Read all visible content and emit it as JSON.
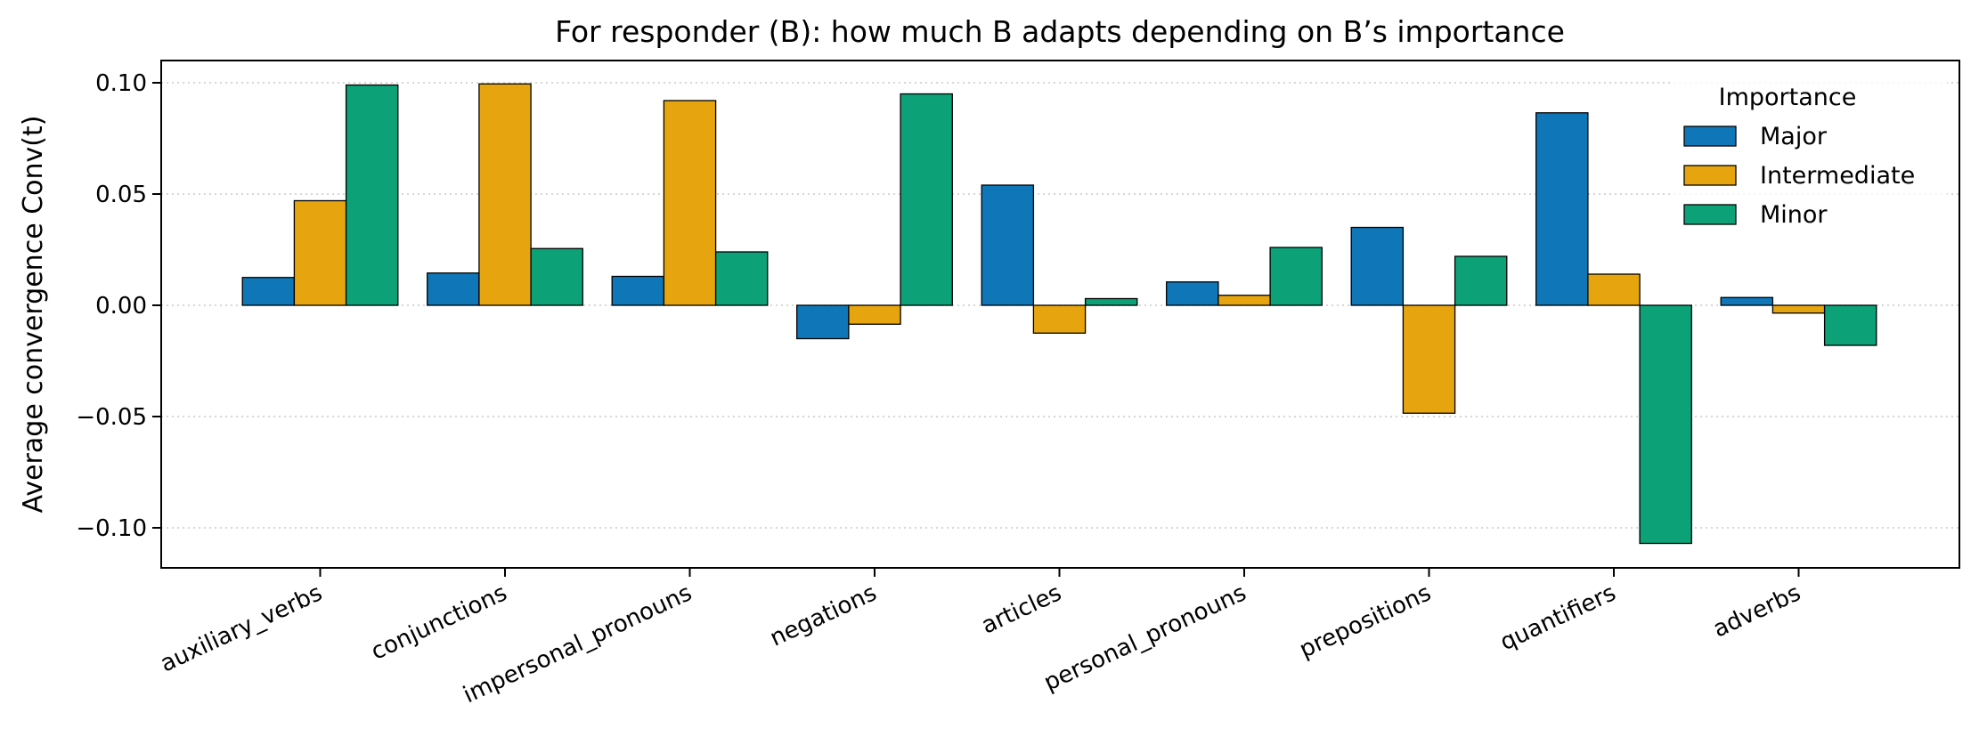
{
  "chart_data": {
    "type": "bar",
    "title": "For responder (B): how much B adapts depending on B’s importance",
    "xlabel": "",
    "ylabel": "Average convergence  Conv(t)",
    "ylim": [
      -0.118,
      0.11
    ],
    "yticks": [
      0.1,
      0.05,
      0.0,
      -0.05,
      -0.1
    ],
    "ytick_labels": [
      "0.10",
      "0.05",
      "0.00",
      "−0.05",
      "−0.10"
    ],
    "grid": "horizontal dotted",
    "legend_position": "top-right",
    "legend_title": "Importance",
    "categories": [
      "auxiliary_verbs",
      "conjunctions",
      "impersonal_pronouns",
      "negations",
      "articles",
      "personal_pronouns",
      "prepositions",
      "quantifiers",
      "adverbs"
    ],
    "series": [
      {
        "name": "Major",
        "color": "#0f77b8",
        "values": [
          0.0125,
          0.0145,
          0.013,
          -0.015,
          0.054,
          0.0105,
          0.035,
          0.0865,
          0.0035
        ]
      },
      {
        "name": "Intermediate",
        "color": "#e6a40e",
        "values": [
          0.047,
          0.0995,
          0.092,
          -0.0085,
          -0.0125,
          0.0045,
          -0.0485,
          0.014,
          -0.0035
        ]
      },
      {
        "name": "Minor",
        "color": "#0da178",
        "values": [
          0.099,
          0.0255,
          0.024,
          0.095,
          0.003,
          0.026,
          0.022,
          -0.107,
          -0.018
        ]
      }
    ]
  }
}
